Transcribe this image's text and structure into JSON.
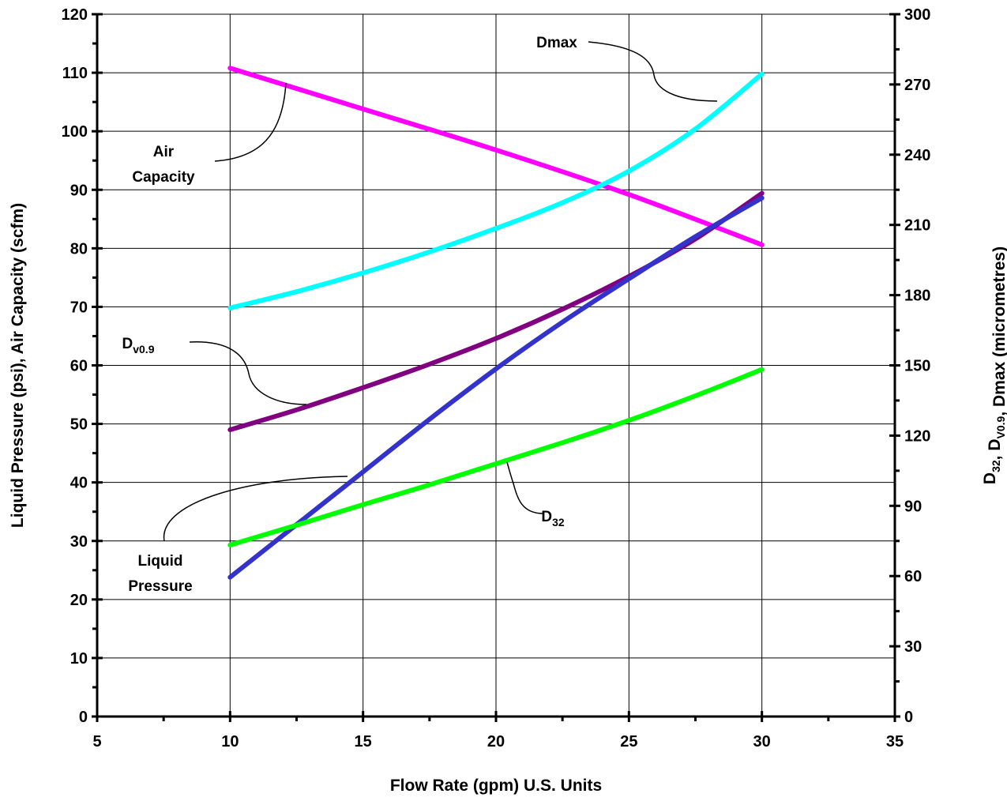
{
  "chart_data": {
    "type": "line",
    "xlabel": "Flow Rate (gpm)  U.S.  Units",
    "ylabel_left": "Liquid Pressure (psi), Air Capacity (scfm)",
    "ylabel_right": {
      "parts": [
        {
          "text": "D",
          "sub": "32"
        },
        {
          "text": ",  D",
          "sub": "V0.9"
        },
        {
          "text": ",  Dmax (micrometres)",
          "sub": ""
        }
      ]
    },
    "xlim": [
      5,
      35
    ],
    "xticks": [
      5,
      10,
      15,
      20,
      25,
      30,
      35
    ],
    "ylim_left": [
      0,
      120
    ],
    "yticks_left": [
      0,
      10,
      20,
      30,
      40,
      50,
      60,
      70,
      80,
      90,
      100,
      110,
      120
    ],
    "ylim_right": [
      0,
      300
    ],
    "yticks_right": [
      0,
      30,
      60,
      90,
      120,
      150,
      180,
      210,
      240,
      270,
      300
    ],
    "grid": true,
    "series": [
      {
        "key": "air-capacity",
        "axis": "left",
        "color": "#ff00ff",
        "x": [
          10,
          15,
          20,
          25,
          30
        ],
        "y": [
          110.8,
          103.8,
          96.8,
          89.2,
          80.6
        ]
      },
      {
        "key": "dmax",
        "axis": "right",
        "color": "#00ffff",
        "x": [
          10,
          12.5,
          15,
          17.5,
          20,
          22.5,
          25,
          27.5,
          30
        ],
        "y": [
          174.5,
          181.5,
          189.5,
          198.5,
          208.5,
          219.5,
          233,
          251,
          274.5
        ]
      },
      {
        "key": "dv09",
        "axis": "right",
        "color": "#800080",
        "x": [
          10,
          12.5,
          15,
          17.5,
          20,
          22.5,
          25,
          27.5,
          30
        ],
        "y": [
          122.5,
          131,
          140.5,
          150.5,
          161.5,
          174,
          188,
          204,
          223.5
        ]
      },
      {
        "key": "d32",
        "axis": "right",
        "color": "#3333cc",
        "x": [
          10,
          12.5,
          15,
          17.5,
          20,
          22.5,
          25,
          27.5,
          30
        ],
        "y": [
          59.5,
          82,
          104.5,
          127,
          148.5,
          168.5,
          187,
          205,
          221.5
        ]
      },
      {
        "key": "liquid-pressure",
        "axis": "left",
        "color": "#00ff00",
        "x": [
          10,
          12.5,
          15,
          17.5,
          20,
          22.5,
          25,
          27.5,
          30
        ],
        "y": [
          29.3,
          32.7,
          36.2,
          39.6,
          43.2,
          46.8,
          50.6,
          54.8,
          59.3
        ]
      }
    ],
    "annotations": [
      {
        "key": "dmax",
        "lines": [
          "Dmax"
        ],
        "sub": ""
      },
      {
        "key": "air-capacity",
        "lines": [
          "Air",
          "Capacity"
        ],
        "sub": ""
      },
      {
        "key": "dv09",
        "lines": [
          "D"
        ],
        "sub": "v0.9"
      },
      {
        "key": "liquid-pressure",
        "lines": [
          "Liquid",
          "Pressure"
        ],
        "sub": ""
      },
      {
        "key": "d32",
        "lines": [
          "D"
        ],
        "sub": "32"
      }
    ]
  }
}
